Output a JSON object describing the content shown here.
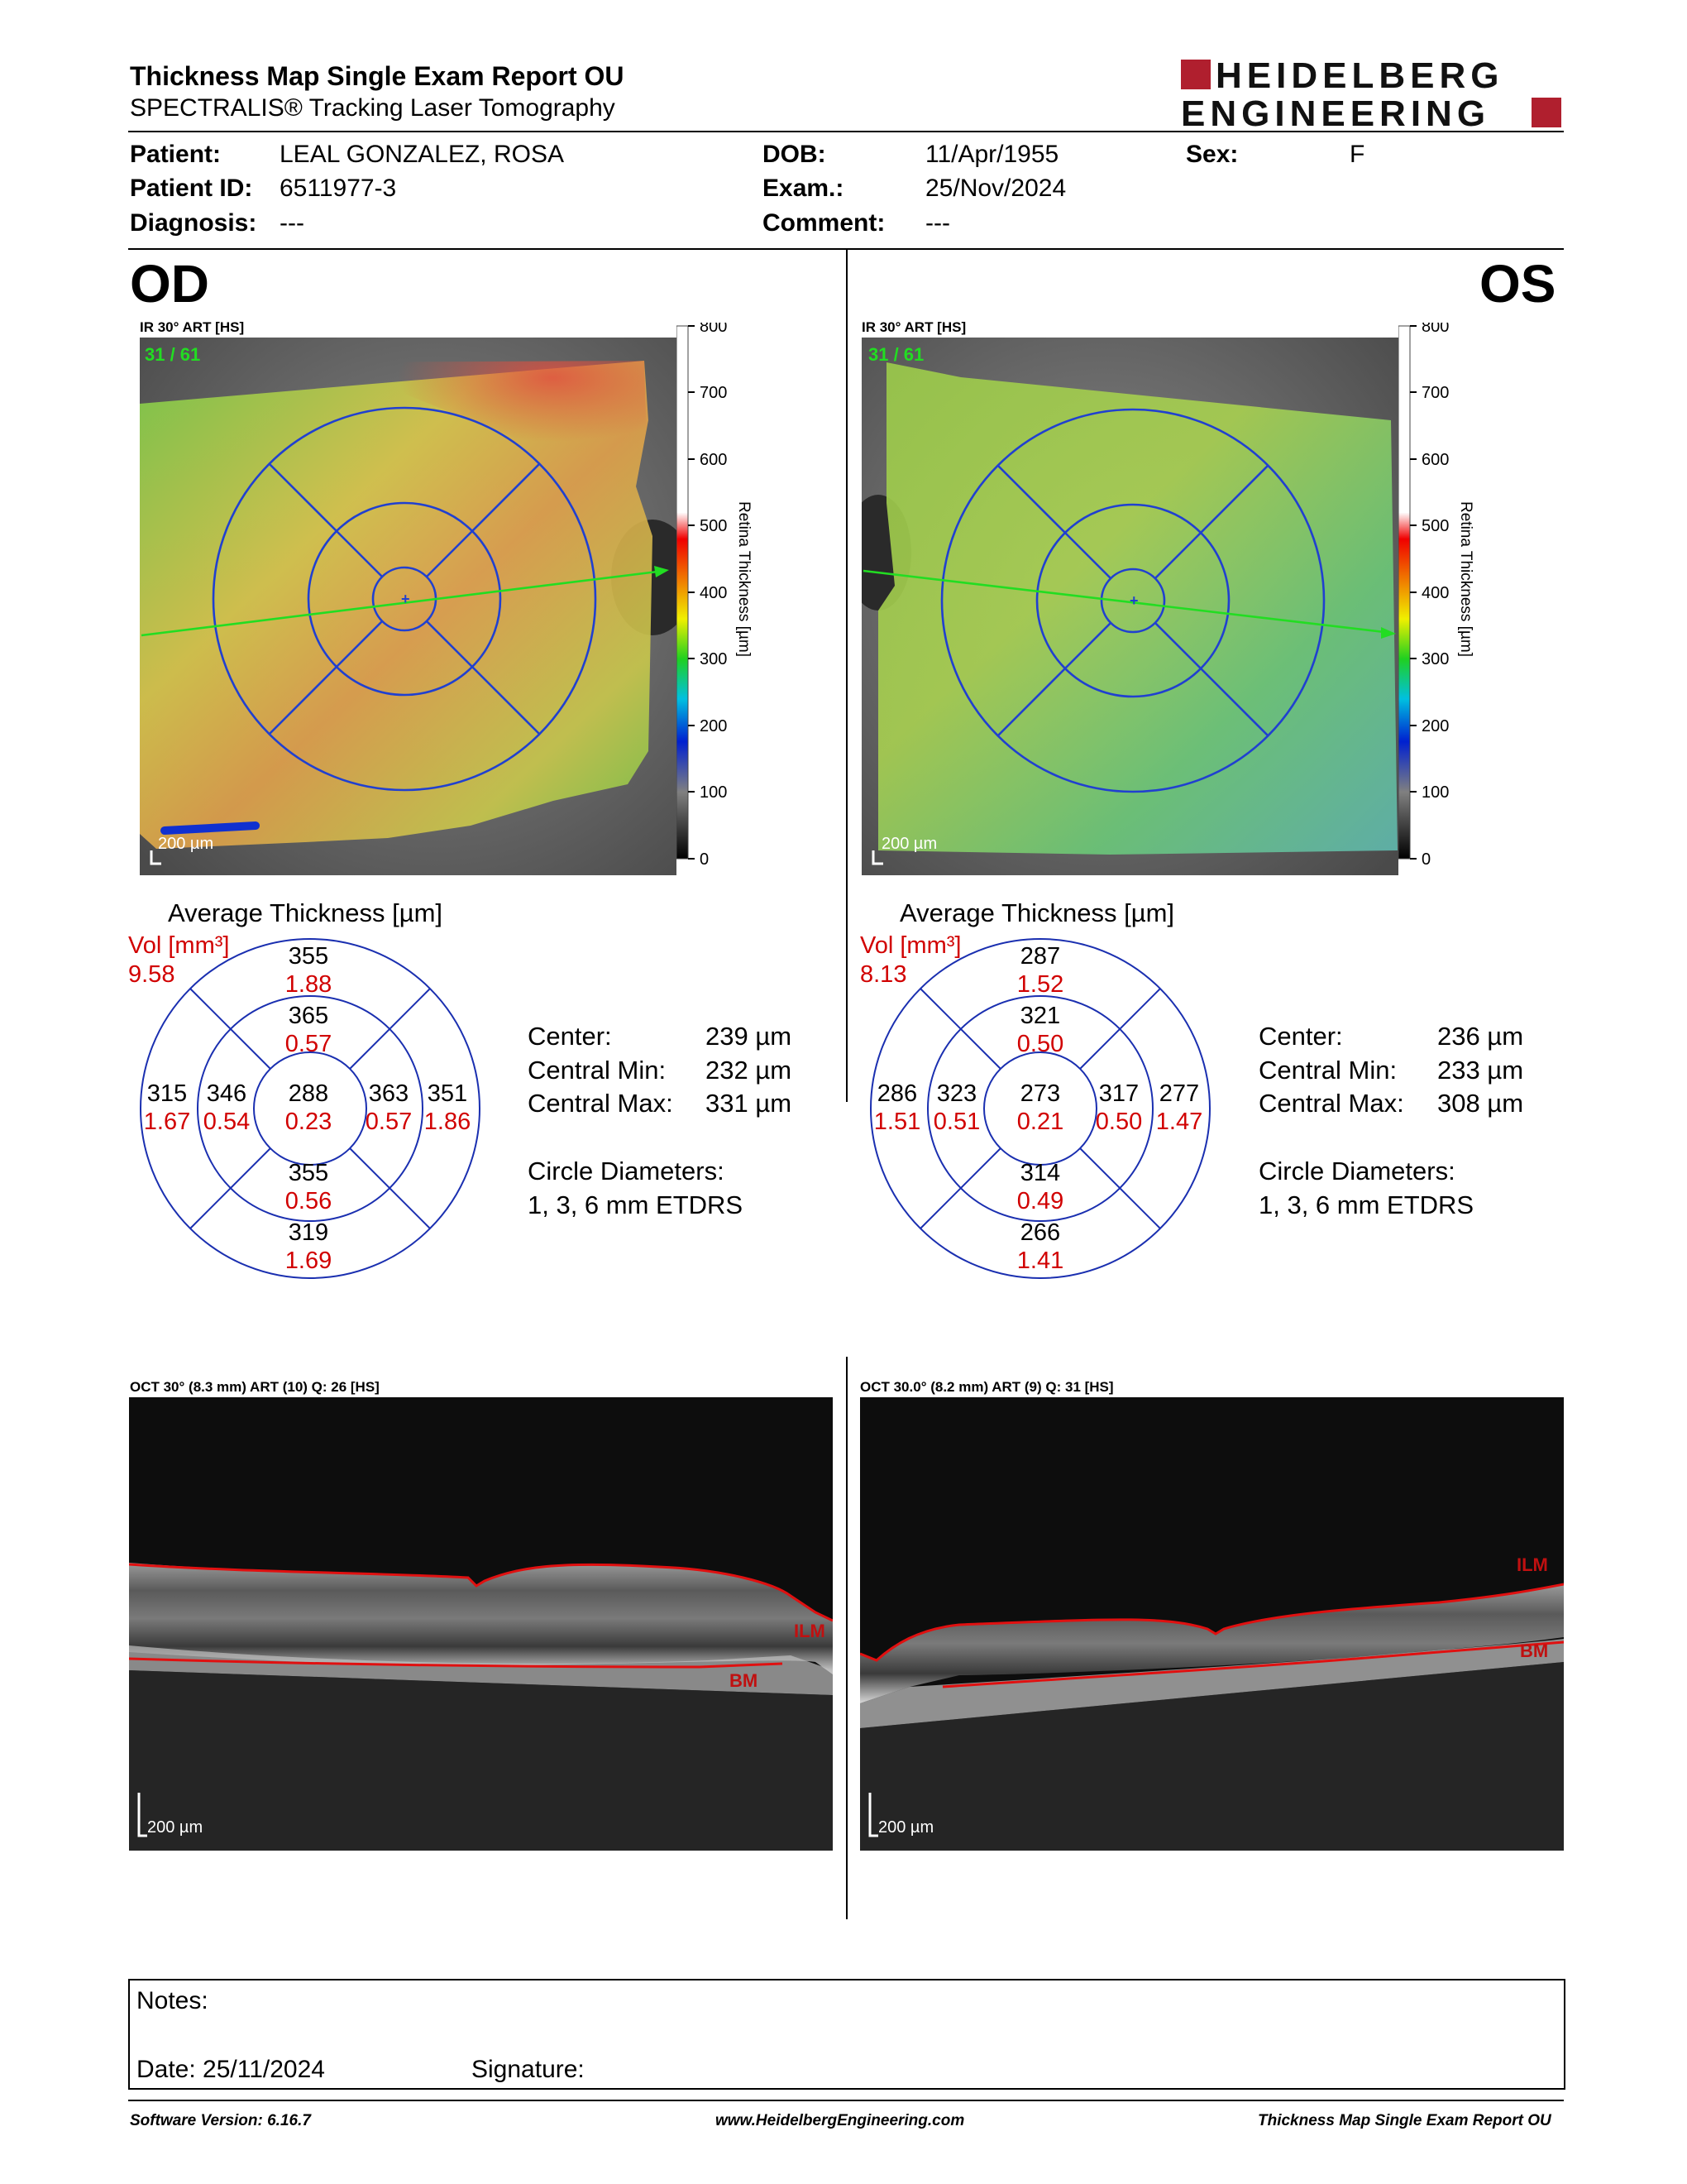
{
  "header": {
    "title": "Thickness Map Single Exam Report OU",
    "subtitle": "SPECTRALIS® Tracking Laser Tomography",
    "logo_line1": "HEIDELBERG",
    "logo_line2": "ENGINEERING"
  },
  "patient": {
    "patient_label": "Patient:",
    "patient_value": "LEAL GONZALEZ, ROSA",
    "id_label": "Patient ID:",
    "id_value": "6511977-3",
    "diagnosis_label": "Diagnosis:",
    "diagnosis_value": "---",
    "dob_label": "DOB:",
    "dob_value": "11/Apr/1955",
    "exam_label": "Exam.:",
    "exam_value": "25/Nov/2024",
    "comment_label": "Comment:",
    "comment_value": "---",
    "sex_label": "Sex:",
    "sex_value": "F"
  },
  "colorbar": {
    "ticks": [
      "800",
      "700",
      "600",
      "500",
      "400",
      "300",
      "200",
      "100",
      "0"
    ],
    "label": "Retina Thickness [µm]"
  },
  "od": {
    "eye": "OD",
    "ir_label": "IR 30° ART [HS]",
    "frame": "31 / 61",
    "scale": "200 µm",
    "avg_title": "Average Thickness [µm]",
    "vol_label": "Vol [mm³]",
    "vol_value": "9.58",
    "grid": {
      "outer_sup": "355",
      "outer_sup_vol": "1.88",
      "inner_sup": "365",
      "inner_sup_vol": "0.57",
      "outer_left": "315",
      "outer_left_vol": "1.67",
      "inner_left": "346",
      "inner_left_vol": "0.54",
      "center": "288",
      "center_vol": "0.23",
      "inner_right": "363",
      "inner_right_vol": "0.57",
      "outer_right": "351",
      "outer_right_vol": "1.86",
      "inner_inf": "355",
      "inner_inf_vol": "0.56",
      "outer_inf": "319",
      "outer_inf_vol": "1.69"
    },
    "stats": {
      "center_label": "Center:",
      "center_value": "239 µm",
      "min_label": "Central Min:",
      "min_value": "232 µm",
      "max_label": "Central Max:",
      "max_value": "331 µm",
      "diam_label": "Circle Diameters:",
      "diam_value": "1, 3, 6 mm ETDRS"
    },
    "oct_label": "OCT 30° (8.3 mm) ART (10) Q: 26 [HS]",
    "ilm": "ILM",
    "bm": "BM",
    "oct_scale": "200 µm"
  },
  "os": {
    "eye": "OS",
    "ir_label": "IR 30° ART [HS]",
    "frame": "31 / 61",
    "scale": "200 µm",
    "avg_title": "Average Thickness [µm]",
    "vol_label": "Vol [mm³]",
    "vol_value": "8.13",
    "grid": {
      "outer_sup": "287",
      "outer_sup_vol": "1.52",
      "inner_sup": "321",
      "inner_sup_vol": "0.50",
      "outer_left": "286",
      "outer_left_vol": "1.51",
      "inner_left": "323",
      "inner_left_vol": "0.51",
      "center": "273",
      "center_vol": "0.21",
      "inner_right": "317",
      "inner_right_vol": "0.50",
      "outer_right": "277",
      "outer_right_vol": "1.47",
      "inner_inf": "314",
      "inner_inf_vol": "0.49",
      "outer_inf": "266",
      "outer_inf_vol": "1.41"
    },
    "stats": {
      "center_label": "Center:",
      "center_value": "236 µm",
      "min_label": "Central Min:",
      "min_value": "233 µm",
      "max_label": "Central Max:",
      "max_value": "308 µm",
      "diam_label": "Circle Diameters:",
      "diam_value": "1, 3, 6 mm ETDRS"
    },
    "oct_label": "OCT 30.0° (8.2 mm) ART (9) Q: 31 [HS]",
    "ilm": "ILM",
    "bm": "BM",
    "oct_scale": "200 µm"
  },
  "notes": {
    "notes_label": "Notes:",
    "date_label": "Date: 25/11/2024",
    "signature_label": "Signature:"
  },
  "footer": {
    "software": "Software Version: 6.16.7",
    "website": "www.HeidelbergEngineering.com",
    "report": "Thickness Map Single Exam Report OU"
  }
}
